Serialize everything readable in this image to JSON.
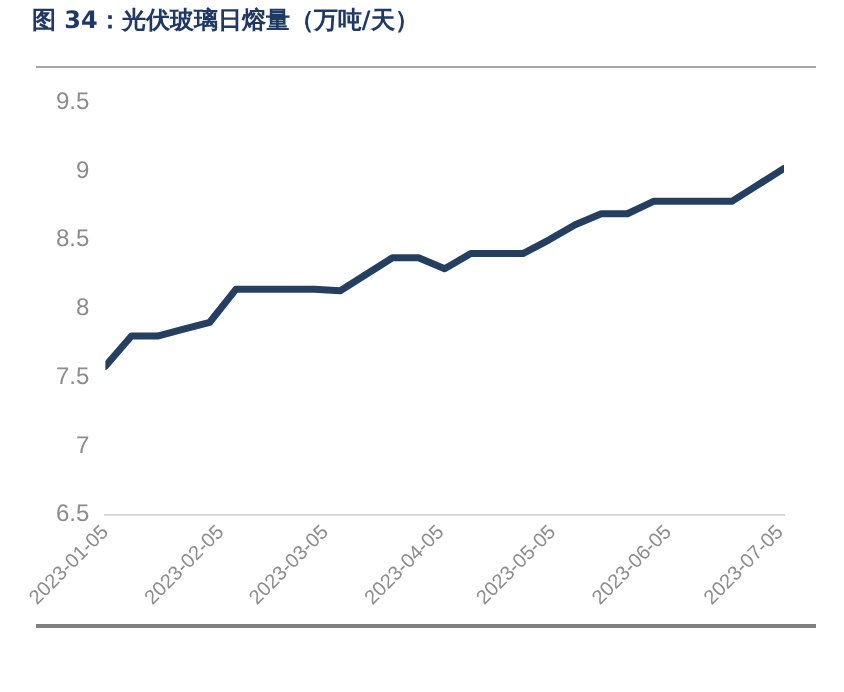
{
  "chart_data": {
    "type": "line",
    "title": "图 34：光伏玻璃日熔量（万吨/天）",
    "x": [
      "2023-01-05",
      "2023-01-12",
      "2023-01-19",
      "2023-01-26",
      "2023-02-02",
      "2023-02-09",
      "2023-02-16",
      "2023-02-23",
      "2023-03-02",
      "2023-03-09",
      "2023-03-16",
      "2023-03-23",
      "2023-03-30",
      "2023-04-06",
      "2023-04-13",
      "2023-04-20",
      "2023-04-27",
      "2023-05-04",
      "2023-05-11",
      "2023-05-18",
      "2023-05-25",
      "2023-06-01",
      "2023-06-08",
      "2023-06-15",
      "2023-06-22",
      "2023-06-29",
      "2023-07-06"
    ],
    "series": [
      {
        "color": "#243f60",
        "values": [
          7.58,
          7.8,
          7.8,
          7.85,
          7.9,
          8.14,
          8.14,
          8.14,
          8.14,
          8.13,
          8.25,
          8.37,
          8.37,
          8.29,
          8.4,
          8.4,
          8.4,
          8.5,
          8.61,
          8.69,
          8.69,
          8.78,
          8.78,
          8.78,
          8.78,
          8.9,
          9.02
        ]
      }
    ],
    "xlim": [
      "2023-01-05",
      "2023-07-06"
    ],
    "xticks": [
      {
        "value": "2023-01-05",
        "label": "2023-01-05"
      },
      {
        "value": "2023-02-05",
        "label": "2023-02-05"
      },
      {
        "value": "2023-03-05",
        "label": "2023-03-05"
      },
      {
        "value": "2023-04-05",
        "label": "2023-04-05"
      },
      {
        "value": "2023-05-05",
        "label": "2023-05-05"
      },
      {
        "value": "2023-06-05",
        "label": "2023-06-05"
      },
      {
        "value": "2023-07-05",
        "label": "2023-07-05"
      }
    ],
    "ylim": [
      6.5,
      9.5
    ],
    "yticks": [
      6.5,
      7,
      7.5,
      8,
      8.5,
      9,
      9.5
    ],
    "grid": false,
    "legend": false,
    "marker": "none",
    "line_style": "solid"
  }
}
